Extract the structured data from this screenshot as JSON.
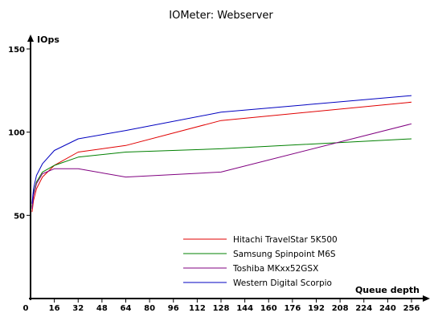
{
  "chart_data": {
    "type": "line",
    "title": "IOMeter: Webserver",
    "xlabel": "Queue depth",
    "ylabel": "IOps",
    "x_ticks": [
      "0",
      "16",
      "32",
      "48",
      "64",
      "80",
      "96",
      "112",
      "128",
      "144",
      "160",
      "176",
      "192",
      "208",
      "224",
      "240",
      "256"
    ],
    "y_ticks": [
      "50",
      "100",
      "150"
    ],
    "xlim": [
      0,
      256
    ],
    "ylim": [
      0,
      150
    ],
    "grid": false,
    "legend_position": "bottom-right",
    "x": [
      1,
      2,
      4,
      8,
      16,
      32,
      64,
      128,
      256
    ],
    "series": [
      {
        "name": "Hitachi TravelStar 5K500",
        "color": "#e00000",
        "values": [
          52,
          59,
          66,
          73,
          80,
          88,
          92,
          107,
          118
        ]
      },
      {
        "name": "Samsung Spinpoint M6S",
        "color": "#008000",
        "values": [
          55,
          63,
          70,
          76,
          80,
          85,
          88,
          90,
          96
        ]
      },
      {
        "name": "Toshiba MKxx52GSX",
        "color": "#800080",
        "values": [
          54,
          62,
          69,
          75,
          78,
          78,
          73,
          76,
          105
        ]
      },
      {
        "name": "Western Digital Scorpio",
        "color": "#0000c0",
        "values": [
          57,
          66,
          74,
          81,
          89,
          96,
          101,
          112,
          122
        ]
      }
    ]
  }
}
